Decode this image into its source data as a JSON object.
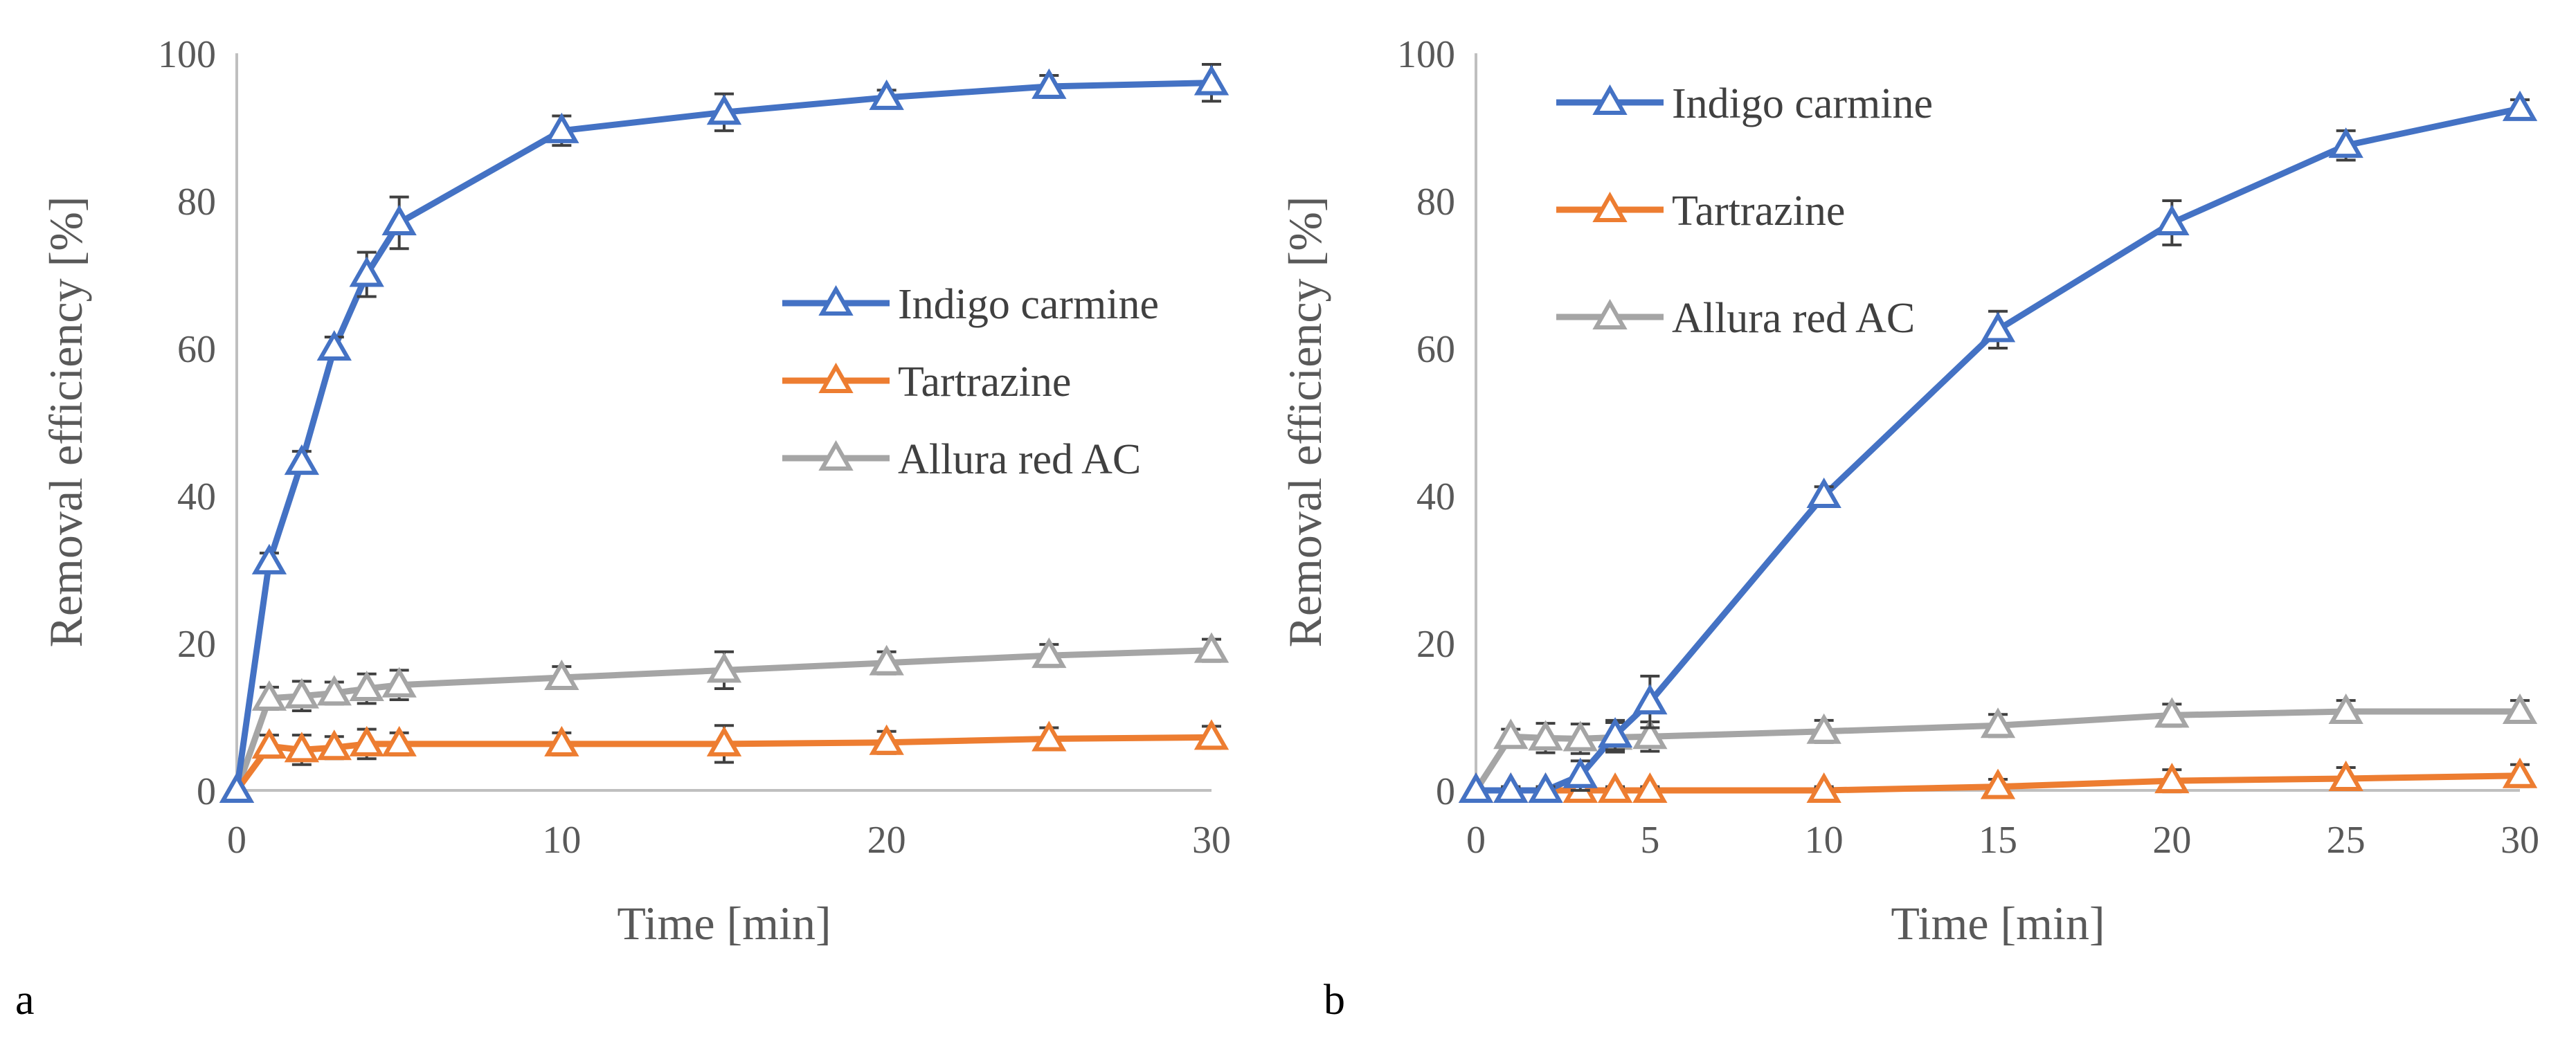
{
  "figure": {
    "panel_labels": [
      "a",
      "b"
    ]
  },
  "chart_data": [
    {
      "type": "line",
      "panel": "a",
      "xlabel": "Time [min]",
      "ylabel": "Removal efficiency [%]",
      "xlim": [
        0,
        30
      ],
      "ylim": [
        0,
        100
      ],
      "x_ticks": [
        0,
        10,
        20,
        30
      ],
      "y_ticks": [
        0,
        20,
        40,
        60,
        80,
        100
      ],
      "grid": false,
      "legend_position": "right",
      "marker": "open-triangle",
      "series": [
        {
          "name": "Indigo carmine",
          "color": "#4472C4",
          "x": [
            0,
            1,
            2,
            3,
            4,
            5,
            10,
            15,
            20,
            25,
            30
          ],
          "y": [
            0,
            31,
            44.5,
            60,
            70,
            77,
            89.5,
            92,
            94,
            95.5,
            96
          ],
          "err": [
            0,
            1.2,
            1.5,
            1.5,
            3,
            3.5,
            2,
            2.5,
            1,
            1.5,
            2.5
          ]
        },
        {
          "name": "Tartrazine",
          "color": "#ED7D31",
          "x": [
            0,
            1,
            2,
            3,
            4,
            5,
            10,
            15,
            20,
            25,
            30
          ],
          "y": [
            0,
            6,
            5.5,
            5.8,
            6.3,
            6.3,
            6.3,
            6.3,
            6.5,
            7,
            7.2
          ],
          "err": [
            0,
            1.5,
            2,
            1.5,
            2,
            1.5,
            1.5,
            2.5,
            1.5,
            1.5,
            1.5
          ]
        },
        {
          "name": "Allura red AC",
          "color": "#A5A5A5",
          "x": [
            0,
            1,
            2,
            3,
            4,
            5,
            10,
            15,
            20,
            25,
            30
          ],
          "y": [
            0,
            12.5,
            12.8,
            13.2,
            13.8,
            14.3,
            15.3,
            16.3,
            17.3,
            18.3,
            19
          ],
          "err": [
            0,
            1.5,
            2,
            1.5,
            2,
            2,
            1.5,
            2.5,
            1.5,
            1.5,
            1.5
          ]
        }
      ]
    },
    {
      "type": "line",
      "panel": "b",
      "xlabel": "Time [min]",
      "ylabel": "Removal efficiency [%]",
      "xlim": [
        0,
        30
      ],
      "ylim": [
        0,
        100
      ],
      "x_ticks": [
        0,
        5,
        10,
        15,
        20,
        25,
        30
      ],
      "y_ticks": [
        0,
        20,
        40,
        60,
        80,
        100
      ],
      "grid": false,
      "legend_position": "top-left",
      "marker": "open-triangle",
      "series": [
        {
          "name": "Indigo carmine",
          "color": "#4472C4",
          "x": [
            0,
            1,
            2,
            3,
            4,
            5,
            10,
            15,
            20,
            25,
            30
          ],
          "y": [
            0,
            0,
            0,
            2,
            7.5,
            12,
            40,
            62.5,
            77,
            87.5,
            92.5
          ],
          "err": [
            0,
            0.5,
            0.5,
            2,
            2,
            3.5,
            1.2,
            2.5,
            3,
            2,
            1.2
          ]
        },
        {
          "name": "Tartrazine",
          "color": "#ED7D31",
          "x": [
            0,
            1,
            2,
            3,
            4,
            5,
            10,
            15,
            20,
            25,
            30
          ],
          "y": [
            0,
            0,
            0,
            0,
            0,
            0,
            0,
            0.5,
            1.3,
            1.6,
            2
          ],
          "err": [
            0,
            0.5,
            0.5,
            0.5,
            0.5,
            0.5,
            0.5,
            1,
            1.5,
            1.5,
            1.5
          ]
        },
        {
          "name": "Allura red AC",
          "color": "#A5A5A5",
          "x": [
            0,
            1,
            2,
            3,
            4,
            5,
            10,
            15,
            20,
            25,
            30
          ],
          "y": [
            0,
            7.3,
            7.1,
            7.0,
            7.2,
            7.3,
            8.0,
            8.8,
            10.2,
            10.7,
            10.7
          ],
          "err": [
            0,
            1,
            2,
            2,
            2,
            2,
            1.5,
            1.5,
            1.5,
            1.5,
            1.5
          ]
        }
      ]
    }
  ]
}
